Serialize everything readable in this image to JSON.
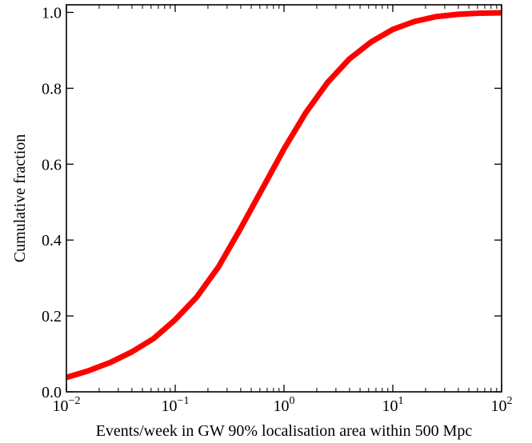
{
  "chart_data": {
    "type": "line",
    "title": "",
    "xlabel": "Events/week in GW 90% localisation area within 500 Mpc",
    "ylabel": "Cumulative fraction",
    "xscale": "log",
    "xlim": [
      0.01,
      100
    ],
    "ylim": [
      0.0,
      1.02
    ],
    "grid": false,
    "legend": "none",
    "x_ticks": [
      {
        "value": 0.01,
        "base": "10",
        "exp": "−2"
      },
      {
        "value": 0.1,
        "base": "10",
        "exp": "−1"
      },
      {
        "value": 1,
        "base": "10",
        "exp": "0"
      },
      {
        "value": 10,
        "base": "10",
        "exp": "1"
      },
      {
        "value": 100,
        "base": "10",
        "exp": "2"
      }
    ],
    "y_ticks": [
      {
        "value": 0.0,
        "label": "0.0"
      },
      {
        "value": 0.2,
        "label": "0.2"
      },
      {
        "value": 0.4,
        "label": "0.4"
      },
      {
        "value": 0.6,
        "label": "0.6"
      },
      {
        "value": 0.8,
        "label": "0.8"
      },
      {
        "value": 1.0,
        "label": "1.0"
      }
    ],
    "series": [
      {
        "color": "#ff0000",
        "x": [
          0.01,
          0.0158,
          0.0251,
          0.0398,
          0.0631,
          0.1,
          0.158,
          0.251,
          0.398,
          0.631,
          1,
          1.58,
          2.51,
          3.98,
          6.31,
          10,
          15.8,
          25.1,
          39.8,
          63.1,
          100
        ],
        "y": [
          0.038,
          0.055,
          0.077,
          0.105,
          0.14,
          0.19,
          0.25,
          0.33,
          0.43,
          0.535,
          0.64,
          0.735,
          0.815,
          0.877,
          0.922,
          0.955,
          0.976,
          0.989,
          0.995,
          0.998,
          0.999
        ]
      }
    ]
  }
}
